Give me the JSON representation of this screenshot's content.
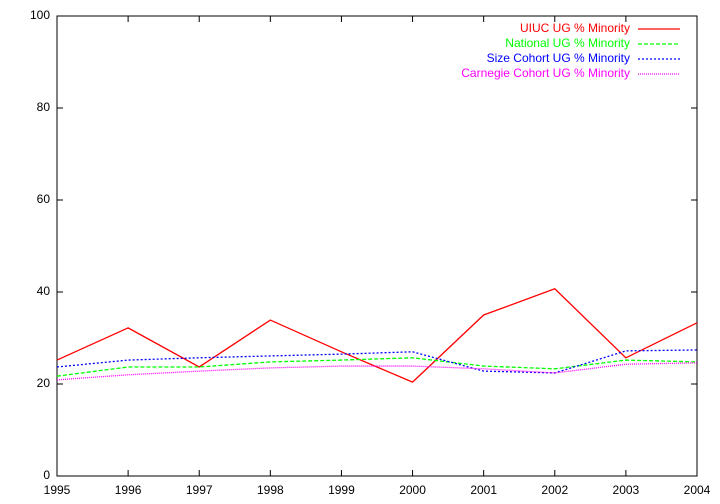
{
  "chart_data": {
    "type": "line",
    "x": [
      1995,
      1996,
      1997,
      1998,
      1999,
      2000,
      2001,
      2002,
      2003,
      2004
    ],
    "series": [
      {
        "name": "UIUC UG % Minority",
        "color": "#ff0000",
        "dash": "solid",
        "values": [
          25.2,
          32.2,
          23.7,
          33.9,
          27.0,
          20.4,
          35.0,
          40.7,
          25.7,
          33.3
        ]
      },
      {
        "name": "National UG % Minority",
        "color": "#00ff00",
        "dash": "dashed",
        "values": [
          21.7,
          23.7,
          23.7,
          24.8,
          25.2,
          25.7,
          23.9,
          23.3,
          25.2,
          24.8
        ]
      },
      {
        "name": "Size Cohort UG % Minority",
        "color": "#0000ff",
        "dash": "dotted",
        "values": [
          23.7,
          25.2,
          25.7,
          26.1,
          26.5,
          27.0,
          22.8,
          22.4,
          27.2,
          27.4
        ]
      },
      {
        "name": "Carnegie Cohort UG % Minority",
        "color": "#ff00ff",
        "dash": "fine-dotted",
        "values": [
          20.9,
          22.0,
          22.8,
          23.5,
          23.9,
          23.9,
          23.3,
          22.4,
          24.3,
          24.6
        ]
      }
    ],
    "xlim": [
      1995,
      2004
    ],
    "xticks": [
      1995,
      1996,
      1997,
      1998,
      1999,
      2000,
      2001,
      2002,
      2003,
      2004
    ],
    "ylim": [
      0,
      100
    ],
    "yticks": [
      0,
      20,
      40,
      60,
      80,
      100
    ],
    "grid": false,
    "legend": "top-right"
  }
}
